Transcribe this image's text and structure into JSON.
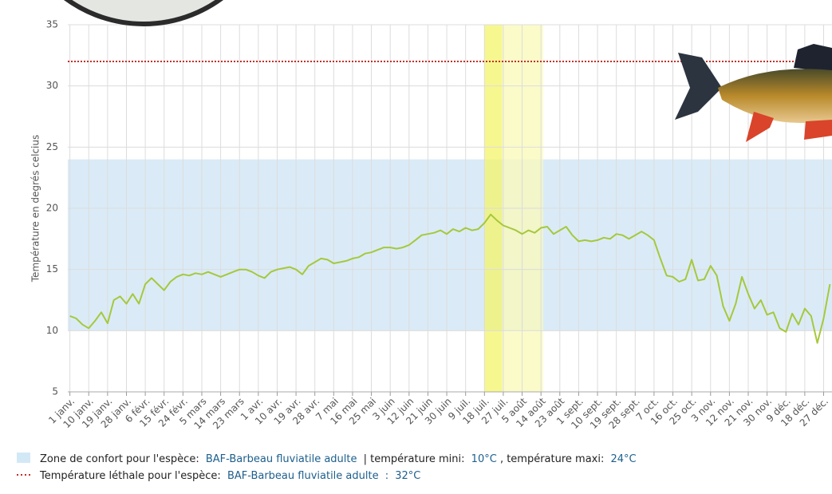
{
  "chart_data": {
    "type": "line",
    "y_label": "Température en degrés celcius",
    "xlim": [
      -1,
      364
    ],
    "ylim": [
      5,
      35
    ],
    "yticks": [
      5,
      10,
      15,
      20,
      25,
      30,
      35
    ],
    "xticks": [
      {
        "value": 0,
        "label": "1 janv."
      },
      {
        "value": 9,
        "label": "10 janv."
      },
      {
        "value": 18,
        "label": "19 janv."
      },
      {
        "value": 27,
        "label": "28 janv."
      },
      {
        "value": 36,
        "label": "6 févr."
      },
      {
        "value": 45,
        "label": "15 févr."
      },
      {
        "value": 54,
        "label": "24 févr."
      },
      {
        "value": 63,
        "label": "5 mars"
      },
      {
        "value": 72,
        "label": "14 mars"
      },
      {
        "value": 81,
        "label": "23 mars"
      },
      {
        "value": 90,
        "label": "1 avr."
      },
      {
        "value": 99,
        "label": "10 avr."
      },
      {
        "value": 108,
        "label": "19 avr."
      },
      {
        "value": 117,
        "label": "28 avr."
      },
      {
        "value": 126,
        "label": "7 mai"
      },
      {
        "value": 135,
        "label": "16 mai"
      },
      {
        "value": 144,
        "label": "25 mai"
      },
      {
        "value": 153,
        "label": "3 juin"
      },
      {
        "value": 162,
        "label": "12 juin"
      },
      {
        "value": 171,
        "label": "21 juin"
      },
      {
        "value": 180,
        "label": "30 juin"
      },
      {
        "value": 189,
        "label": "9 juil."
      },
      {
        "value": 198,
        "label": "18 juil."
      },
      {
        "value": 207,
        "label": "27 juil."
      },
      {
        "value": 216,
        "label": "5 août"
      },
      {
        "value": 225,
        "label": "14 août"
      },
      {
        "value": 234,
        "label": "23 août"
      },
      {
        "value": 243,
        "label": "1 sept."
      },
      {
        "value": 252,
        "label": "10 sept."
      },
      {
        "value": 261,
        "label": "19 sept."
      },
      {
        "value": 270,
        "label": "28 sept."
      },
      {
        "value": 279,
        "label": "7 oct."
      },
      {
        "value": 288,
        "label": "16 oct."
      },
      {
        "value": 297,
        "label": "25 oct."
      },
      {
        "value": 306,
        "label": "3 nov."
      },
      {
        "value": 315,
        "label": "12 nov."
      },
      {
        "value": 324,
        "label": "21 nov."
      },
      {
        "value": 333,
        "label": "30 nov."
      },
      {
        "value": 342,
        "label": "9 déc."
      },
      {
        "value": 351,
        "label": "18 déc."
      },
      {
        "value": 360,
        "label": "27 déc."
      }
    ],
    "grid": true,
    "x": [
      0,
      3,
      6,
      9,
      12,
      15,
      18,
      21,
      24,
      27,
      30,
      33,
      36,
      39,
      42,
      45,
      48,
      51,
      54,
      57,
      60,
      63,
      66,
      69,
      72,
      75,
      78,
      81,
      84,
      87,
      90,
      93,
      96,
      99,
      102,
      105,
      108,
      111,
      114,
      117,
      120,
      123,
      126,
      129,
      132,
      135,
      138,
      141,
      144,
      147,
      150,
      153,
      156,
      159,
      162,
      165,
      168,
      171,
      174,
      177,
      180,
      183,
      186,
      189,
      192,
      195,
      198,
      201,
      204,
      207,
      210,
      213,
      216,
      219,
      222,
      225,
      228,
      231,
      234,
      237,
      240,
      243,
      246,
      249,
      252,
      255,
      258,
      261,
      264,
      267,
      270,
      273,
      276,
      279,
      282,
      285,
      288,
      291,
      294,
      297,
      300,
      303,
      306,
      309,
      312,
      315,
      318,
      321,
      324,
      327,
      330,
      333,
      336,
      339,
      342,
      345,
      348,
      351,
      354,
      357,
      360,
      363
    ],
    "series": [
      {
        "color": "#a6c83c",
        "values": [
          11.2,
          11.0,
          10.5,
          10.2,
          10.8,
          11.5,
          10.6,
          12.5,
          12.8,
          12.2,
          13.0,
          12.2,
          13.8,
          14.3,
          13.8,
          13.3,
          14.0,
          14.4,
          14.6,
          14.5,
          14.7,
          14.6,
          14.8,
          14.6,
          14.4,
          14.6,
          14.8,
          15.0,
          15.0,
          14.8,
          14.5,
          14.3,
          14.8,
          15.0,
          15.1,
          15.2,
          15.0,
          14.6,
          15.3,
          15.6,
          15.9,
          15.8,
          15.5,
          15.6,
          15.7,
          15.9,
          16.0,
          16.3,
          16.4,
          16.6,
          16.8,
          16.8,
          16.7,
          16.8,
          17.0,
          17.4,
          17.8,
          17.9,
          18.0,
          18.2,
          17.9,
          18.3,
          18.1,
          18.4,
          18.2,
          18.3,
          18.8,
          19.5,
          19.0,
          18.6,
          18.4,
          18.2,
          17.9,
          18.2,
          18.0,
          18.4,
          18.5,
          17.9,
          18.2,
          18.5,
          17.8,
          17.3,
          17.4,
          17.3,
          17.4,
          17.6,
          17.5,
          17.9,
          17.8,
          17.5,
          17.8,
          18.1,
          17.8,
          17.4,
          15.9,
          14.5,
          14.4,
          14.0,
          14.2,
          15.8,
          14.1,
          14.2,
          15.3,
          14.5,
          12.0,
          10.8,
          12.2,
          14.4,
          13.0,
          11.8,
          12.5,
          11.3,
          11.5,
          10.2,
          9.9,
          11.4,
          10.5,
          11.8,
          11.2,
          9.0,
          11.0,
          13.8
        ]
      }
    ],
    "highlight_periods": [
      {
        "from": 198,
        "to": 206.5,
        "color": "#f4f46a"
      },
      {
        "from": 206.5,
        "to": 226,
        "color": "#f9f9b8"
      }
    ],
    "comfort_zone": {
      "color": "#d3e8f6",
      "label_prefix": "Zone de confort pour l'espèce:",
      "species": "BAF-Barbeau fluviatile adulte",
      "mini_text": "| température mini:",
      "min": 10,
      "min_label": "10°C",
      "maxi_text": ", température maxi:",
      "max": 24,
      "max_label": "24°C"
    },
    "lethal": {
      "color": "#c0302a",
      "label_prefix": "Température léthale pour l'espèce:",
      "species": "BAF-Barbeau fluviatile adulte",
      "separator": ":",
      "value": 32,
      "value_label": "32°C"
    }
  }
}
